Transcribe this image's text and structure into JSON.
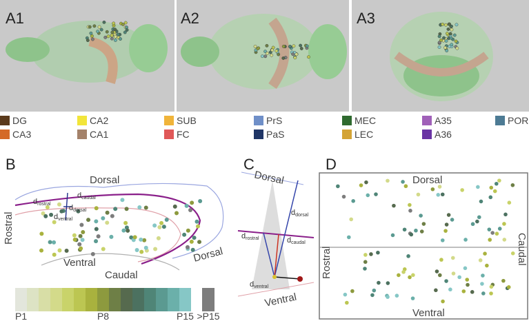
{
  "panels_a": [
    {
      "label": "A1"
    },
    {
      "label": "A2"
    },
    {
      "label": "A3"
    }
  ],
  "legend": [
    {
      "name": "DG",
      "color": "#5b3a1c"
    },
    {
      "name": "CA2",
      "color": "#f2e53a"
    },
    {
      "name": "SUB",
      "color": "#f0b43a"
    },
    {
      "name": "PrS",
      "color": "#6f8fc8"
    },
    {
      "name": "MEC",
      "color": "#2f6a2f"
    },
    {
      "name": "A35",
      "color": "#a060b8"
    },
    {
      "name": "POR",
      "color": "#4d7b94"
    },
    {
      "name": "CA3",
      "color": "#d46a28"
    },
    {
      "name": "CA1",
      "color": "#a4826a"
    },
    {
      "name": "FC",
      "color": "#e05858"
    },
    {
      "name": "PaS",
      "color": "#1f3566"
    },
    {
      "name": "LEC",
      "color": "#d4a436"
    },
    {
      "name": "A36",
      "color": "#6a34a4"
    }
  ],
  "panel_b": {
    "label": "B",
    "dorsal": "Dorsal",
    "rostral": "Rostral",
    "ventral": "Ventral",
    "caudal": "Caudal",
    "dorsal_right": "Dorsal",
    "d": "d",
    "sub_rostral": "rostral",
    "sub_caudal": "caudal",
    "sub_dorsal": "dorsal",
    "sub_ventral": "ventral"
  },
  "color_scale": {
    "colors": [
      "#e3e6dc",
      "#dde3c4",
      "#d8dea6",
      "#d3da8a",
      "#c9d36a",
      "#bcc652",
      "#a9b23e",
      "#8d9a3e",
      "#6e7f46",
      "#566a4e",
      "#4c7160",
      "#4f8577",
      "#5b9a91",
      "#6bb0aa",
      "#86c7c6"
    ],
    "over_color": "#7d7d7d",
    "labels": [
      {
        "text": "P1",
        "index": 0
      },
      {
        "text": "P8",
        "index": 7
      },
      {
        "text": "P15",
        "index": 14
      }
    ],
    "over_label": ">P15"
  },
  "panel_c": {
    "label": "C",
    "dorsal": "Dorsal",
    "ventral": "Ventral",
    "d": "d",
    "sub_dorsal": "dorsal",
    "sub_rostral": "rostral",
    "sub_caudal": "caudal",
    "sub_ventral": "ventral"
  },
  "panel_d": {
    "label": "D",
    "dorsal": "Dorsal",
    "ventral": "Ventral",
    "rostral": "Rostral",
    "caudal": "Caudal"
  }
}
